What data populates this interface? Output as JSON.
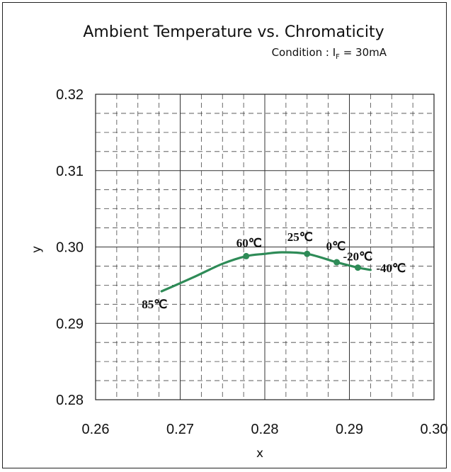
{
  "chart_data": {
    "type": "line",
    "title": "Ambient Temperature vs. Chromaticity",
    "subtitle": {
      "prefix": "Condition : I",
      "subscript": "F",
      "suffix": " = 30mA"
    },
    "xlabel": "x",
    "ylabel": "y",
    "xlim": [
      0.26,
      0.3
    ],
    "ylim": [
      0.28,
      0.32
    ],
    "xticks": [
      "0.26",
      "0.27",
      "0.28",
      "0.29",
      "0.30"
    ],
    "yticks": [
      "0.28",
      "0.29",
      "0.30",
      "0.31",
      "0.32"
    ],
    "major_grid": "solid",
    "minor_grid": "dashed",
    "minor_divisions": 4,
    "line_color": "#2e8b57",
    "curve": [
      {
        "x": 0.2678,
        "y": 0.2942
      },
      {
        "x": 0.2715,
        "y": 0.296
      },
      {
        "x": 0.275,
        "y": 0.2978
      },
      {
        "x": 0.2778,
        "y": 0.2988
      },
      {
        "x": 0.28,
        "y": 0.2991
      },
      {
        "x": 0.282,
        "y": 0.2993
      },
      {
        "x": 0.285,
        "y": 0.2991
      },
      {
        "x": 0.2885,
        "y": 0.298
      },
      {
        "x": 0.291,
        "y": 0.2973
      },
      {
        "x": 0.2925,
        "y": 0.297
      }
    ],
    "points": [
      {
        "label": "85℃",
        "x": 0.2678,
        "y": 0.2942,
        "marker": false
      },
      {
        "label": "60℃",
        "x": 0.2778,
        "y": 0.2988,
        "marker": true
      },
      {
        "label": "25℃",
        "x": 0.285,
        "y": 0.2991,
        "marker": true
      },
      {
        "label": "0℃",
        "x": 0.2885,
        "y": 0.298,
        "marker": true
      },
      {
        "label": "-20℃",
        "x": 0.291,
        "y": 0.2973,
        "marker": true
      },
      {
        "label": "-40℃",
        "x": 0.2925,
        "y": 0.297,
        "marker": false
      }
    ]
  }
}
